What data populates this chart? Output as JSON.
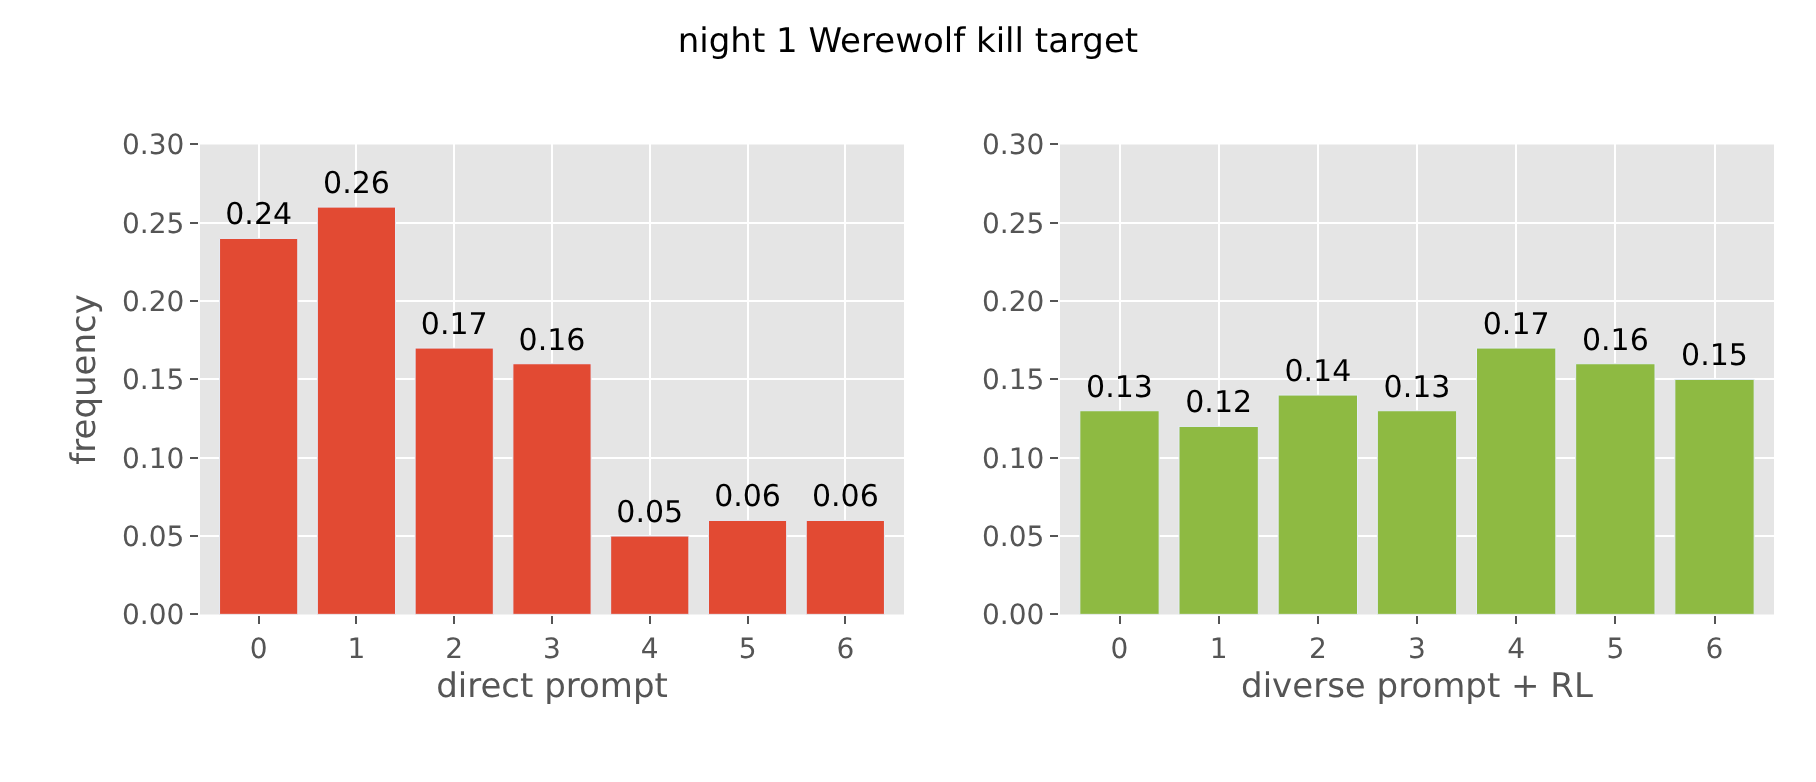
{
  "chart_data": [
    {
      "type": "bar",
      "title": "night 1 Werewolf kill target",
      "xlabel": "direct prompt",
      "ylabel": "frequency",
      "categories": [
        "0",
        "1",
        "2",
        "3",
        "4",
        "5",
        "6"
      ],
      "series": [
        {
          "color": "#e24a33",
          "values": [
            0.24,
            0.26,
            0.17,
            0.16,
            0.05,
            0.06,
            0.06
          ]
        }
      ],
      "ylim": [
        0,
        0.3
      ],
      "yticks": [
        {
          "value": 0,
          "label": "0.00"
        },
        {
          "value": 0.05,
          "label": "0.05"
        },
        {
          "value": 0.1,
          "label": "0.10"
        },
        {
          "value": 0.15,
          "label": "0.15"
        },
        {
          "value": 0.2,
          "label": "0.20"
        },
        {
          "value": 0.25,
          "label": "0.25"
        },
        {
          "value": 0.3,
          "label": "0.30"
        }
      ],
      "grid": true,
      "data_labels": true
    },
    {
      "type": "bar",
      "xlabel": "diverse prompt + RL",
      "categories": [
        "0",
        "1",
        "2",
        "3",
        "4",
        "5",
        "6"
      ],
      "series": [
        {
          "color": "#8eba42",
          "values": [
            0.13,
            0.12,
            0.14,
            0.13,
            0.17,
            0.16,
            0.15
          ]
        }
      ],
      "ylim": [
        0,
        0.3
      ],
      "yticks": [
        {
          "value": 0,
          "label": "0.00"
        },
        {
          "value": 0.05,
          "label": "0.05"
        },
        {
          "value": 0.1,
          "label": "0.10"
        },
        {
          "value": 0.15,
          "label": "0.15"
        },
        {
          "value": 0.2,
          "label": "0.20"
        },
        {
          "value": 0.25,
          "label": "0.25"
        },
        {
          "value": 0.3,
          "label": "0.30"
        }
      ],
      "grid": true,
      "data_labels": true
    }
  ]
}
